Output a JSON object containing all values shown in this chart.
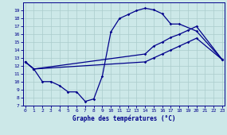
{
  "title": "Graphe des températures (°C)",
  "bg_color": "#cce8e8",
  "line_color": "#00008b",
  "grid_color": "#aacccc",
  "ylim": [
    7,
    20
  ],
  "xlim": [
    -0.3,
    23.3
  ],
  "yticks": [
    7,
    8,
    9,
    10,
    11,
    12,
    13,
    14,
    15,
    16,
    17,
    18,
    19
  ],
  "xticks": [
    0,
    1,
    2,
    3,
    4,
    5,
    6,
    7,
    8,
    9,
    10,
    11,
    12,
    13,
    14,
    15,
    16,
    17,
    18,
    19,
    20,
    21,
    22,
    23
  ],
  "series": [
    {
      "x": [
        0,
        1,
        2,
        3,
        4,
        5,
        6,
        7,
        8,
        9,
        10,
        11,
        12,
        13,
        14,
        15,
        16,
        17,
        18,
        20,
        23
      ],
      "y": [
        12.5,
        11.6,
        10.0,
        10.0,
        9.5,
        8.7,
        8.7,
        7.5,
        7.8,
        10.7,
        16.3,
        18.0,
        18.5,
        19.0,
        19.3,
        19.1,
        18.6,
        17.3,
        17.3,
        16.4,
        12.8
      ]
    },
    {
      "x": [
        0,
        1,
        14,
        15,
        16,
        17,
        18,
        19,
        20,
        23
      ],
      "y": [
        12.5,
        11.6,
        13.5,
        14.5,
        15.0,
        15.6,
        16.0,
        16.5,
        17.0,
        12.8
      ]
    },
    {
      "x": [
        0,
        1,
        14,
        15,
        16,
        17,
        18,
        19,
        20,
        23
      ],
      "y": [
        12.5,
        11.6,
        12.5,
        13.0,
        13.5,
        14.0,
        14.5,
        15.0,
        15.5,
        12.8
      ]
    }
  ]
}
